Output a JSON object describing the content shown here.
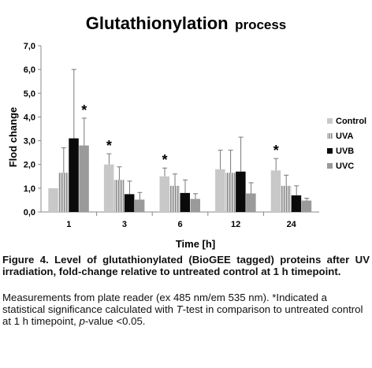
{
  "chart_data": {
    "type": "bar",
    "title": "Glutathionylation",
    "title_suffix": "process",
    "xlabel": "Time [h]",
    "ylabel": "Flod change",
    "categories": [
      "1",
      "3",
      "6",
      "12",
      "24"
    ],
    "ylim": [
      0,
      7
    ],
    "yticks": [
      "0,0",
      "1,0",
      "2,0",
      "3,0",
      "4,0",
      "5,0",
      "6,0",
      "7,0"
    ],
    "grid": false,
    "legend_position": "right",
    "series": [
      {
        "name": "Control",
        "color": "#c8c8c8",
        "values": [
          1.0,
          2.0,
          1.5,
          1.8,
          1.75
        ],
        "errors": [
          0,
          0.45,
          0.35,
          0.8,
          0.5
        ]
      },
      {
        "name": "UVA",
        "color": "#bdbdbd",
        "pattern": "vertical-stripes",
        "values": [
          1.65,
          1.35,
          1.1,
          1.65,
          1.1
        ],
        "errors": [
          1.05,
          0.55,
          0.5,
          0.95,
          0.45
        ]
      },
      {
        "name": "UVB",
        "color": "#0a0a0a",
        "values": [
          3.1,
          0.75,
          0.8,
          1.7,
          0.7
        ],
        "errors": [
          2.9,
          0.55,
          0.55,
          1.45,
          0.4
        ]
      },
      {
        "name": "UVC",
        "color": "#9a9a9a",
        "values": [
          2.8,
          0.52,
          0.55,
          0.78,
          0.48
        ],
        "errors": [
          1.15,
          0.3,
          0.22,
          0.45,
          0.1
        ]
      }
    ],
    "significance": [
      {
        "category": "1",
        "series": "UVC",
        "mark": "*"
      },
      {
        "category": "3",
        "series": "Control",
        "mark": "*"
      },
      {
        "category": "6",
        "series": "Control",
        "mark": "*"
      },
      {
        "category": "24",
        "series": "Control",
        "mark": "*"
      }
    ]
  },
  "caption": {
    "bold": "Figure 4. Level of glutathionylated (BioGEE tagged) proteins after UV irradiation, fold-change relative to untreated control at 1 h timepoint.",
    "body_prefix": "Measurements from plate reader (ex 485 nm/em 535 nm). *Indicated a statistical significance calculated with ",
    "body_t": "T",
    "body_mid": "-test in comparison to untreated control at 1 h timepoint, ",
    "body_p": "p",
    "body_suffix": "-value <0.05."
  }
}
